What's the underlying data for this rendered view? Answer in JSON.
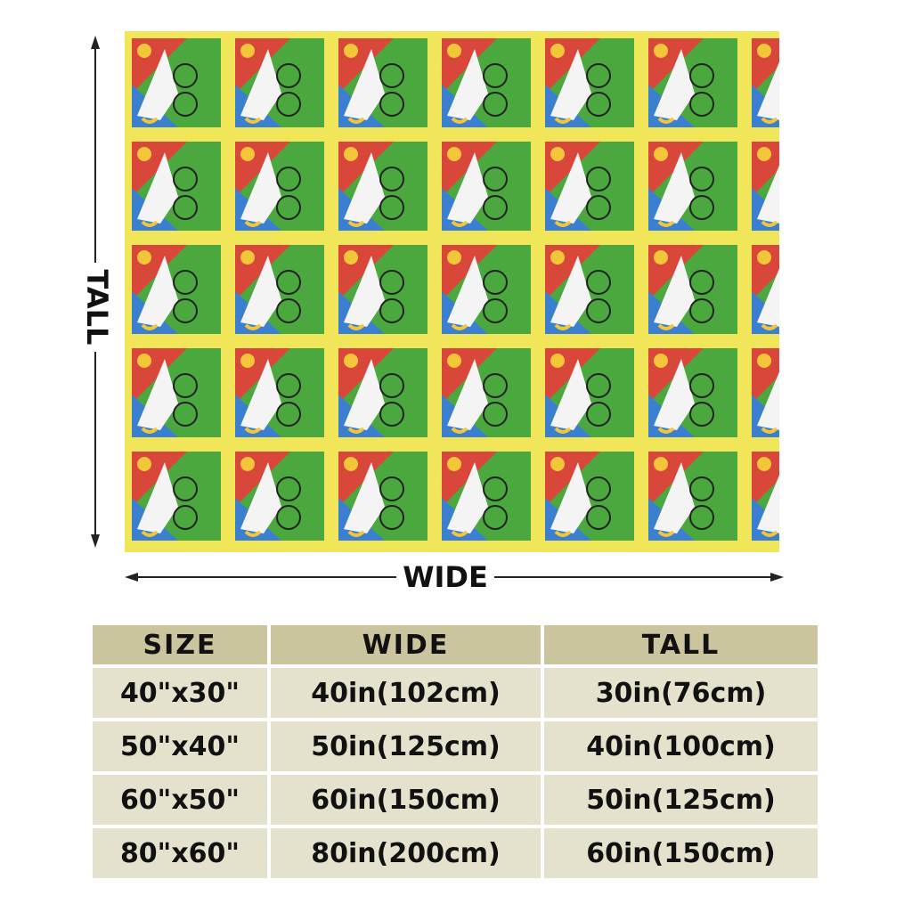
{
  "labels": {
    "tall": "TALL",
    "wide": "WIDE"
  },
  "table": {
    "header": [
      "SIZE",
      "WIDE",
      "TALL"
    ],
    "rows": [
      [
        "40\"x30\"",
        "40in(102cm)",
        "30in(76cm)"
      ],
      [
        "50\"x40\"",
        "50in(125cm)",
        "40in(100cm)"
      ],
      [
        "60\"x50\"",
        "60in(150cm)",
        "50in(125cm)"
      ],
      [
        "80\"x60\"",
        "80in(200cm)",
        "60in(150cm)"
      ]
    ]
  }
}
